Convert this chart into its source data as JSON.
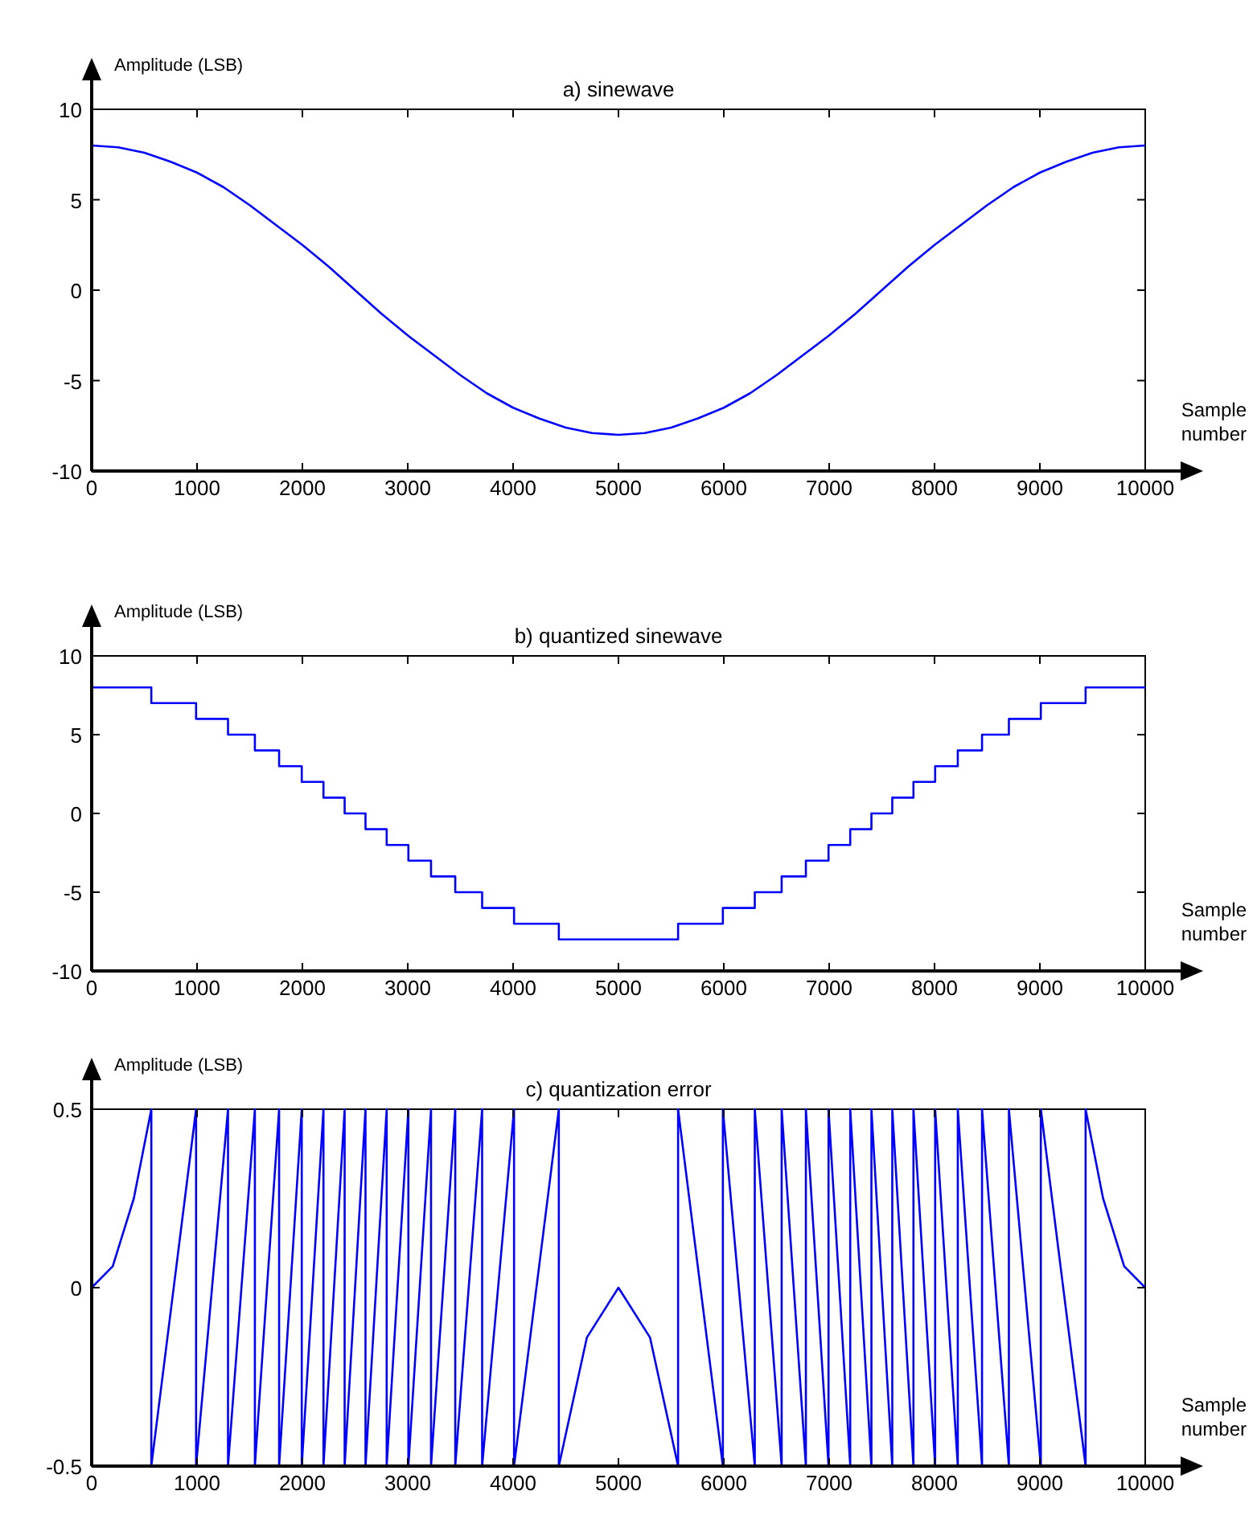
{
  "chart_data": [
    {
      "type": "line",
      "title": "a) sinewave",
      "ylabel": "Amplitude (LSB)",
      "xlabel": "Sample number",
      "xlim": [
        0,
        10000
      ],
      "xticks": [
        0,
        1000,
        2000,
        3000,
        4000,
        5000,
        6000,
        7000,
        8000,
        9000,
        10000
      ],
      "ylim": [
        -10,
        10
      ],
      "yticks": [
        -10,
        -5,
        0,
        5,
        10
      ],
      "grid": false,
      "series": [
        {
          "color": "#0000ff",
          "x": [
            0,
            250,
            500,
            750,
            1000,
            1250,
            1500,
            1750,
            2000,
            2250,
            2500,
            2750,
            3000,
            3250,
            3500,
            3750,
            4000,
            4250,
            4500,
            4750,
            5000,
            5250,
            5500,
            5750,
            6000,
            6250,
            6500,
            6750,
            7000,
            7250,
            7500,
            7750,
            8000,
            8250,
            8500,
            8750,
            9000,
            9250,
            9500,
            9750,
            10000
          ],
          "values": [
            8,
            7.9,
            7.6,
            7.1,
            6.5,
            5.7,
            4.7,
            3.6,
            2.5,
            1.3,
            0,
            -1.3,
            -2.5,
            -3.6,
            -4.7,
            -5.7,
            -6.5,
            -7.1,
            -7.6,
            -7.9,
            -8,
            -7.9,
            -7.6,
            -7.1,
            -6.5,
            -5.7,
            -4.7,
            -3.6,
            -2.5,
            -1.3,
            0,
            1.3,
            2.5,
            3.6,
            4.7,
            5.7,
            6.5,
            7.1,
            7.6,
            7.9,
            8
          ]
        }
      ]
    },
    {
      "type": "step",
      "title": "b) quantized sinewave",
      "ylabel": "Amplitude (LSB)",
      "xlabel": "Sample number",
      "xlim": [
        0,
        10000
      ],
      "xticks": [
        0,
        1000,
        2000,
        3000,
        4000,
        5000,
        6000,
        7000,
        8000,
        9000,
        10000
      ],
      "ylim": [
        -10,
        10
      ],
      "yticks": [
        -10,
        -5,
        0,
        5,
        10
      ],
      "grid": false,
      "series": [
        {
          "color": "#0000ff",
          "x": [
            0,
            566,
            991,
            1294,
            1549,
            1779,
            1994,
            2200,
            2401,
            2599,
            2800,
            3006,
            3221,
            3451,
            3706,
            4009,
            4434,
            5566,
            5991,
            6294,
            6549,
            6779,
            6994,
            7200,
            7401,
            7599,
            7800,
            8006,
            8221,
            8451,
            8706,
            9009,
            9434,
            10000
          ],
          "values": [
            8,
            7,
            6,
            5,
            4,
            3,
            2,
            1,
            0,
            -1,
            -2,
            -3,
            -4,
            -5,
            -6,
            -7,
            -8,
            -7,
            -6,
            -5,
            -4,
            -3,
            -2,
            -1,
            0,
            1,
            2,
            3,
            4,
            5,
            6,
            7,
            8,
            8
          ]
        }
      ]
    },
    {
      "type": "line",
      "title": "c) quantization error",
      "ylabel": "Amplitude (LSB)",
      "xlabel": "Sample number",
      "xlim": [
        0,
        10000
      ],
      "xticks": [
        0,
        1000,
        2000,
        3000,
        4000,
        5000,
        6000,
        7000,
        8000,
        9000,
        10000
      ],
      "ylim": [
        -0.5,
        0.5
      ],
      "yticks": [
        -0.5,
        0,
        0.5
      ],
      "grid": false,
      "series": [
        {
          "color": "#0000ff",
          "x": [
            0,
            200,
            400,
            566,
            566,
            991,
            991,
            1294,
            1294,
            1549,
            1549,
            1779,
            1779,
            1994,
            1994,
            2200,
            2200,
            2401,
            2401,
            2599,
            2599,
            2800,
            2800,
            3006,
            3006,
            3221,
            3221,
            3451,
            3451,
            3706,
            3706,
            4009,
            4009,
            4434,
            4434,
            4700,
            5000,
            5300,
            5566,
            5566,
            5991,
            5991,
            6294,
            6294,
            6549,
            6549,
            6779,
            6779,
            6994,
            6994,
            7200,
            7200,
            7401,
            7401,
            7599,
            7599,
            7800,
            7800,
            8006,
            8006,
            8221,
            8221,
            8451,
            8451,
            8706,
            8706,
            9009,
            9009,
            9434,
            9434,
            9600,
            9800,
            10000
          ],
          "values": [
            0,
            0.06,
            0.25,
            0.5,
            -0.5,
            0.5,
            -0.5,
            0.5,
            -0.5,
            0.5,
            -0.5,
            0.5,
            -0.5,
            0.5,
            -0.5,
            0.5,
            -0.5,
            0.5,
            -0.5,
            0.5,
            -0.5,
            0.5,
            -0.5,
            0.5,
            -0.5,
            0.5,
            -0.5,
            0.5,
            -0.5,
            0.5,
            -0.5,
            0.5,
            -0.5,
            0.5,
            -0.5,
            -0.14,
            0,
            -0.14,
            -0.5,
            0.5,
            -0.5,
            0.5,
            -0.5,
            0.5,
            -0.5,
            0.5,
            -0.5,
            0.5,
            -0.5,
            0.5,
            -0.5,
            0.5,
            -0.5,
            0.5,
            -0.5,
            0.5,
            -0.5,
            0.5,
            -0.5,
            0.5,
            -0.5,
            0.5,
            -0.5,
            0.5,
            -0.5,
            0.5,
            -0.5,
            0.5,
            -0.5,
            0.5,
            0.25,
            0.06,
            0
          ]
        }
      ]
    }
  ]
}
